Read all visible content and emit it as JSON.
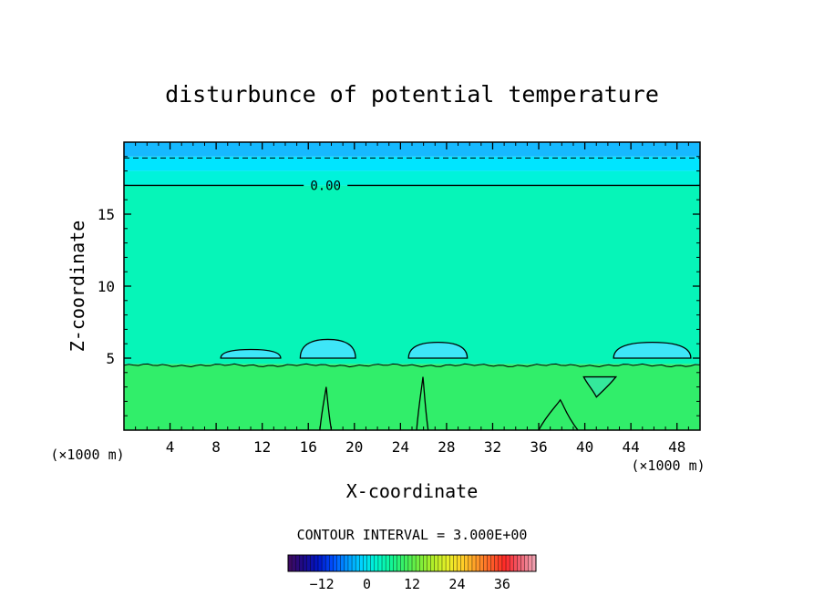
{
  "chart_data": {
    "type": "heatmap",
    "title": "disturbunce of potential temperature",
    "xlabel": "X-coordinate",
    "ylabel": "Z-coordinate",
    "x_unit_left": "(×1000 m)",
    "x_unit_right": "(×1000 m)",
    "xlim": [
      0,
      50
    ],
    "ylim": [
      0,
      20
    ],
    "x_ticks": [
      4,
      8,
      12,
      16,
      20,
      24,
      28,
      32,
      36,
      40,
      44,
      48
    ],
    "x_tick_labels": [
      "4",
      "8",
      "12",
      "16",
      "20",
      "24",
      "28",
      "32",
      "36",
      "40",
      "44",
      "48"
    ],
    "y_ticks": [
      5,
      10,
      15
    ],
    "y_tick_labels": [
      "5",
      "10",
      "15"
    ],
    "field_bands": [
      {
        "z_min": 0,
        "z_max": 4.6,
        "level": 3,
        "color": "#31ee6a"
      },
      {
        "z_min": 4.6,
        "z_max": 17.0,
        "level": 0,
        "color": "#06f5b8"
      },
      {
        "z_min": 17.0,
        "z_max": 18.0,
        "level": -1,
        "color": "#00f3db"
      },
      {
        "z_min": 18.0,
        "z_max": 19.0,
        "level": -2,
        "color": "#00e5ff"
      },
      {
        "z_min": 19.0,
        "z_max": 20.0,
        "level": -4,
        "color": "#16b9ff"
      }
    ],
    "contours": [
      {
        "level": 0,
        "style": "solid",
        "label": "0.00",
        "z": 17.0,
        "x_range": [
          0,
          50
        ]
      },
      {
        "level": -3,
        "style": "dashed",
        "z": 18.9,
        "x_range": [
          0,
          50
        ]
      },
      {
        "level": 0,
        "style": "solid",
        "z_mean": 4.5,
        "x_range": [
          0,
          50
        ]
      }
    ],
    "features": [
      {
        "kind": "cool-bubble",
        "x_range": [
          8.4,
          13.6
        ],
        "z_range": [
          5.0,
          5.6
        ]
      },
      {
        "kind": "cool-bubble",
        "x_range": [
          15.3,
          20.1
        ],
        "z_range": [
          5.0,
          6.3
        ]
      },
      {
        "kind": "cool-bubble",
        "x_range": [
          24.7,
          29.8
        ],
        "z_range": [
          5.0,
          6.1
        ]
      },
      {
        "kind": "cool-bubble",
        "x_range": [
          42.5,
          49.2
        ],
        "z_range": [
          5.0,
          6.1
        ]
      },
      {
        "kind": "contour-plume",
        "x_range": [
          17.0,
          18.0
        ],
        "z_range": [
          0,
          3.0
        ]
      },
      {
        "kind": "contour-plume",
        "x_range": [
          25.4,
          26.4
        ],
        "z_range": [
          0,
          3.7
        ]
      },
      {
        "kind": "contour-plume",
        "x_range": [
          36.0,
          39.4
        ],
        "z_range": [
          0,
          2.1
        ]
      },
      {
        "kind": "contour-lobe",
        "x_range": [
          39.9,
          42.7
        ],
        "z_range": [
          2.3,
          3.7
        ]
      }
    ],
    "contour_interval_text": "CONTOUR INTERVAL = 3.000E+00",
    "colorbar": {
      "range": [
        -21,
        45
      ],
      "ticks": [
        -12,
        0,
        12,
        24,
        36
      ],
      "tick_labels": [
        "−12",
        "0",
        "12",
        "24",
        "36"
      ],
      "colors": [
        "#3d0a63",
        "#1a0a8c",
        "#0016c8",
        "#0050ff",
        "#0098ff",
        "#00d4ff",
        "#00f5d0",
        "#0ff59a",
        "#3cf060",
        "#78ee3c",
        "#b4ee28",
        "#e8f028",
        "#ffd028",
        "#ff9a28",
        "#ff6028",
        "#ff2828",
        "#f06070",
        "#f0a0b0"
      ]
    }
  }
}
